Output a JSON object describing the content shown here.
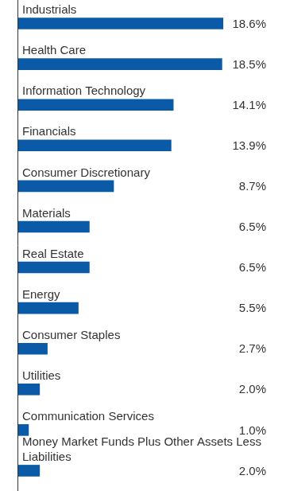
{
  "chart_data": {
    "type": "bar",
    "orientation": "horizontal",
    "categories": [
      "Industrials",
      "Health Care",
      "Information Technology",
      "Financials",
      "Consumer Discretionary",
      "Materials",
      "Real Estate",
      "Energy",
      "Consumer Staples",
      "Utilities",
      "Communication Services",
      "Money Market Funds Plus Other Assets Less Liabilities"
    ],
    "values": [
      18.6,
      18.5,
      14.1,
      13.9,
      8.7,
      6.5,
      6.5,
      5.5,
      2.7,
      2.0,
      1.0,
      2.0
    ],
    "value_labels": [
      "18.6%",
      "18.5%",
      "14.1%",
      "13.9%",
      "8.7%",
      "6.5%",
      "6.5%",
      "5.5%",
      "2.7%",
      "2.0%",
      "1.0%",
      "2.0%"
    ],
    "color": "#0a5aa8",
    "xlim": [
      0,
      22.5
    ],
    "data_labels": true,
    "tick_labels": false,
    "grid": false
  }
}
